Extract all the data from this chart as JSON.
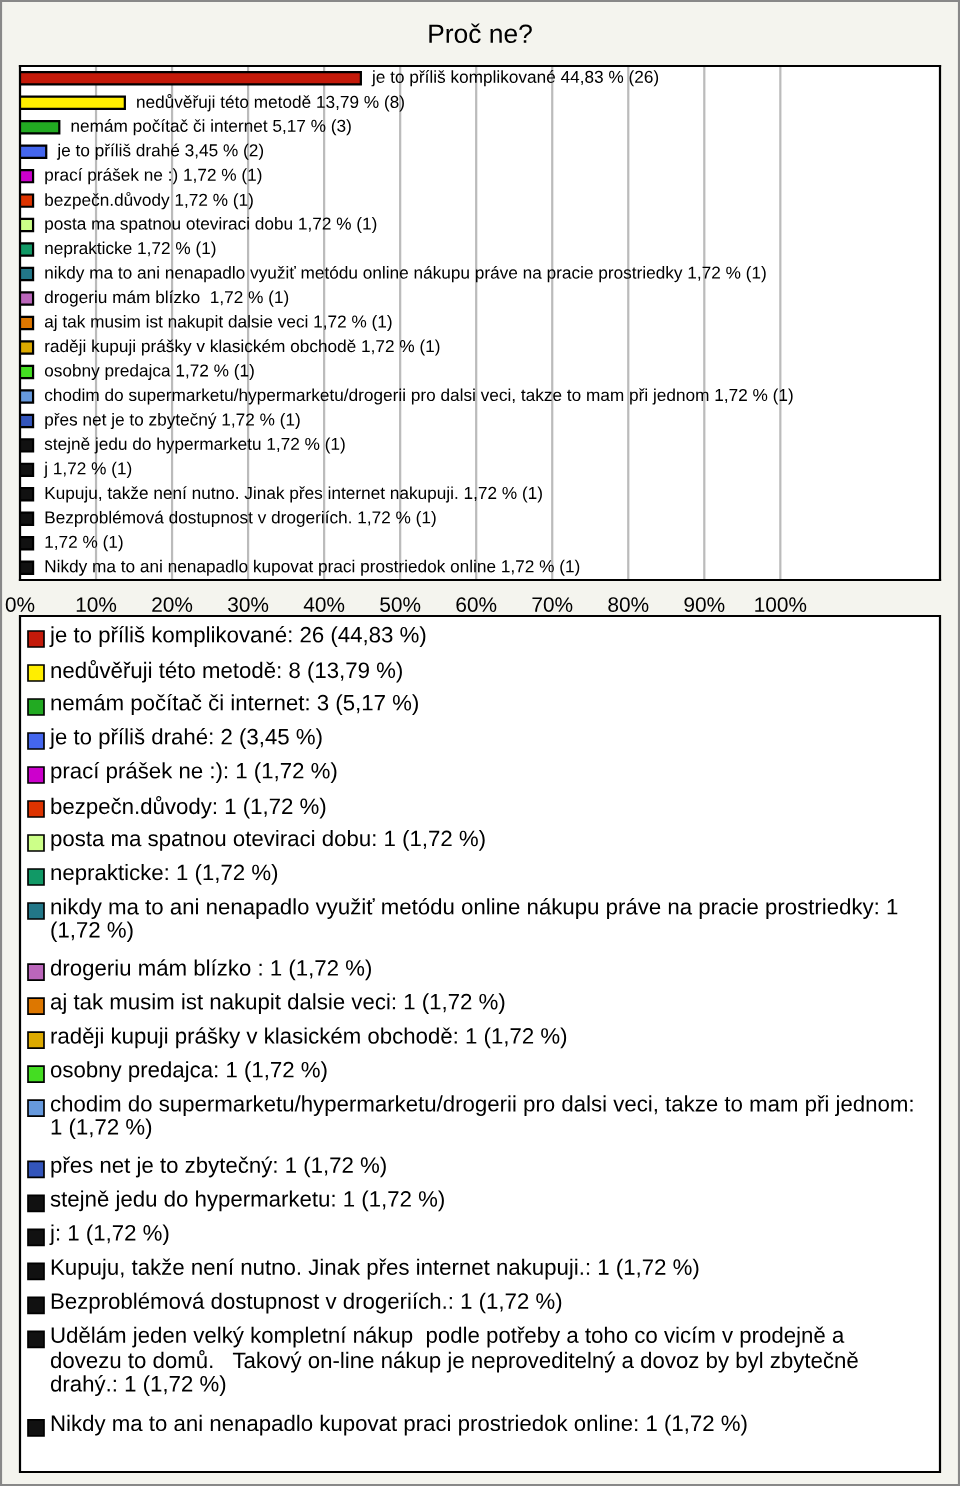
{
  "chart_data": {
    "type": "bar",
    "orientation": "horizontal",
    "title": "Proč ne?",
    "categories": [
      null,
      null,
      null,
      null,
      null,
      null,
      null,
      null,
      null,
      null,
      null,
      null,
      null,
      null,
      null,
      null,
      null,
      null,
      null,
      null,
      null
    ],
    "values": [
      44.83,
      13.79,
      5.17,
      3.45,
      1.72,
      1.72,
      1.72,
      1.72,
      1.72,
      1.72,
      1.72,
      1.72,
      1.72,
      1.72,
      1.72,
      1.72,
      1.72,
      1.72,
      1.72,
      1.72,
      1.72
    ],
    "colors": [
      "#c41a0a",
      "#ffee00",
      "#22aa22",
      "#4466ee",
      "#cc00cc",
      "#dd3300",
      "#ccff88",
      "#119966",
      "#227788",
      "#bb66bb",
      "#dd7700",
      "#ddaa00",
      "#44dd22",
      "#6699dd",
      "#3355bb",
      "#111111",
      "#111111",
      "#111111",
      "#111111",
      "#111111",
      "#111111"
    ],
    "value_labels": [
      "je to příliš komplikované 44,83 % (26)",
      "nedůvěřuji této metodě 13,79 % (8)",
      "nemám počítač či internet 5,17 % (3)",
      "je to příliš drahé 3,45 % (2)",
      "prací prášek ne :) 1,72 % (1)",
      "bezpečn.důvody 1,72 % (1)",
      "posta ma spatnou oteviraci dobu 1,72 % (1)",
      "neprakticke 1,72 % (1)",
      "nikdy ma to ani nenapadlo využiť metódu online nákupu práve na pracie prostriedky 1,72 % (1)",
      "drogeriu mám blízko  1,72 % (1)",
      "aj tak musim ist nakupit dalsie veci 1,72 % (1)",
      "raději kupuji prášky v klasickém obchodě 1,72 % (1)",
      "osobny predajca 1,72 % (1)",
      "chodim do supermarketu/hypermarketu/drogerii pro dalsi veci, takze to mam při jednom 1,72 % (1)",
      "přes net je to zbytečný 1,72 % (1)",
      "stejně jedu do hypermarketu 1,72 % (1)",
      "j 1,72 % (1)",
      "Kupuju, takže není nutno. Jinak přes internet nakupuji. 1,72 % (1)",
      "Bezproblémová dostupnost v drogeriích. 1,72 % (1)",
      "1,72 % (1)",
      "Nikdy ma to ani nenapadlo kupovat praci prostriedok online 1,72 % (1)"
    ],
    "xlim": [
      0,
      121
    ],
    "xticks": [
      {
        "value": 0,
        "label": "0%"
      },
      {
        "value": 10,
        "label": "10%"
      },
      {
        "value": 20,
        "label": "20%"
      },
      {
        "value": 30,
        "label": "30%"
      },
      {
        "value": 40,
        "label": "40%"
      },
      {
        "value": 50,
        "label": "50%"
      },
      {
        "value": 60,
        "label": "60%"
      },
      {
        "value": 70,
        "label": "70%"
      },
      {
        "value": 80,
        "label": "80%"
      },
      {
        "value": 90,
        "label": "90%"
      },
      {
        "value": 100,
        "label": "100%"
      }
    ],
    "grid": "x",
    "tick_labels": "x",
    "annotations": [
      "je to příliš komplikované: 26 (44,83 %)",
      "nedůvěřuji této metodě: 8 (13,79 %)",
      "nemám počítač či internet: 3 (5,17 %)",
      "je to příliš drahé: 2 (3,45 %)",
      "prací prášek ne :): 1 (1,72 %)",
      "bezpečn.důvody: 1 (1,72 %)",
      "posta ma spatnou oteviraci dobu: 1 (1,72 %)",
      "neprakticke: 1 (1,72 %)",
      "nikdy ma to ani nenapadlo využiť metódu online nákupu práve na pracie prostriedky: 1 (1,72 %)",
      "drogeriu mám blízko : 1 (1,72 %)",
      "aj tak musim ist nakupit dalsie veci: 1 (1,72 %)",
      "raději kupuji prášky v klasickém obchodě: 1 (1,72 %)",
      "osobny predajca: 1 (1,72 %)",
      "chodim do supermarketu/hypermarketu/drogerii pro dalsi veci, takze to mam při jednom: 1 (1,72 %)",
      "přes net je to zbytečný: 1 (1,72 %)",
      "stejně jedu do hypermarketu: 1 (1,72 %)",
      "j: 1 (1,72 %)",
      "Kupuju, takže není nutno. Jinak přes internet nakupuji.: 1 (1,72 %)",
      "Bezproblémová dostupnost v drogeriích.: 1 (1,72 %)",
      "Udělám jeden velký kompletní nákup  podle potřeby a toho co vicím v prodejně a dovezu to domů.   Takový on-line nákup je neproveditelný a dovoz by byl zbytečně drahý.: 1 (1,72 %)",
      "Nikdy ma to ani nenapadlo kupovat praci prostriedok online: 1 (1,72 %)"
    ]
  }
}
